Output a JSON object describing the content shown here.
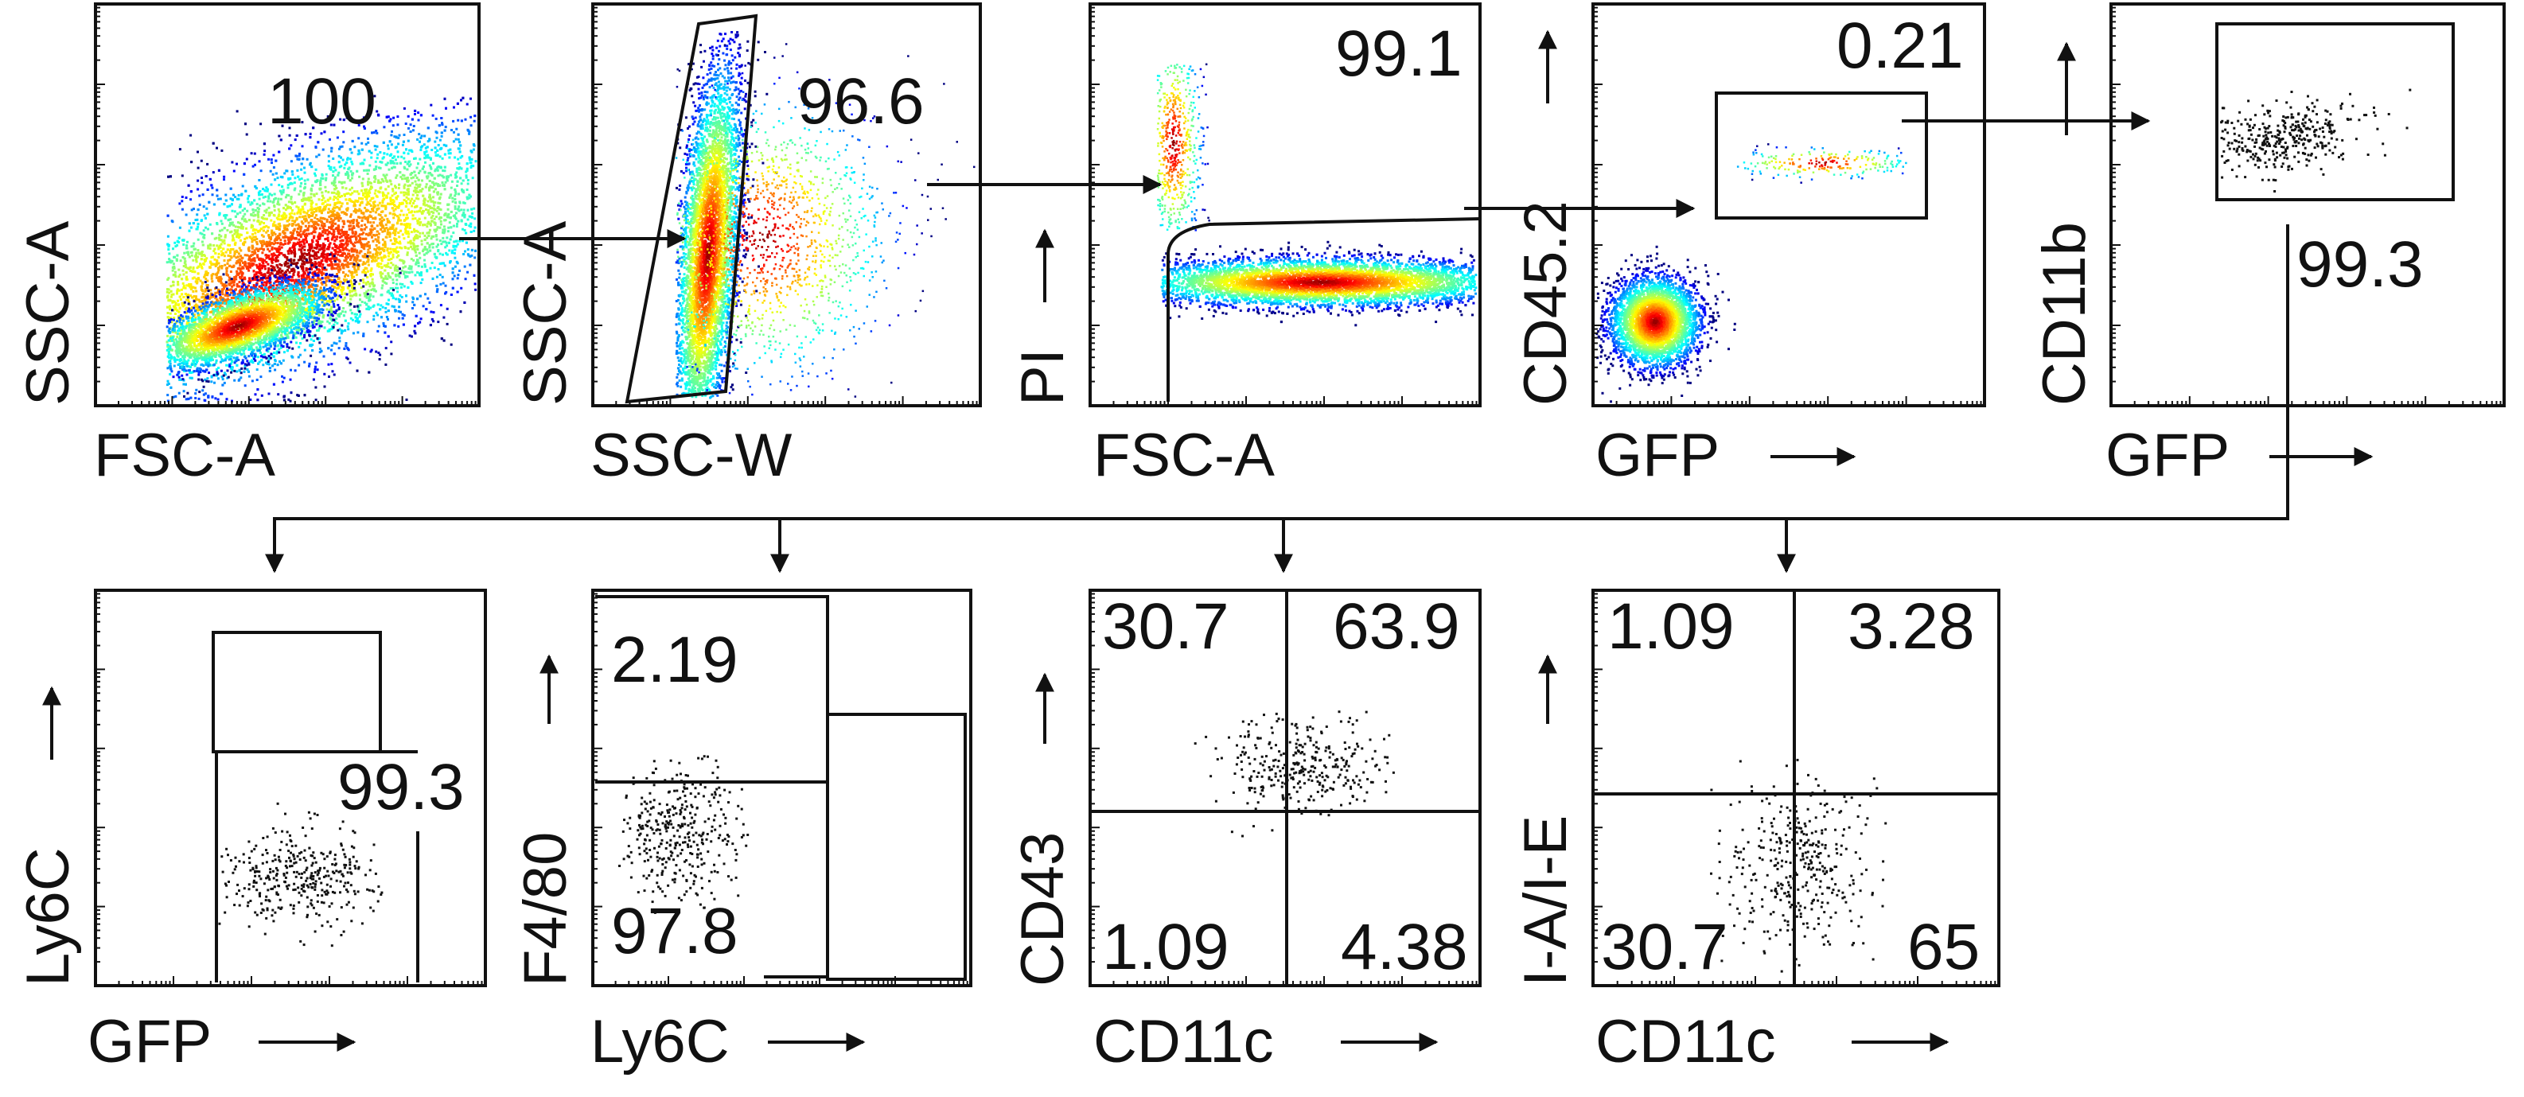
{
  "chart_data": [
    {
      "type": "scatter",
      "name": "panel-1",
      "xlabel": "FSC-A",
      "ylabel": "SSC-A",
      "gates": [
        {
          "label": "100"
        }
      ],
      "colored_density": true
    },
    {
      "type": "scatter",
      "name": "panel-2",
      "xlabel": "SSC-W",
      "ylabel": "SSC-A",
      "gates": [
        {
          "label": "96.6"
        }
      ],
      "colored_density": true
    },
    {
      "type": "scatter",
      "name": "panel-3",
      "xlabel": "FSC-A",
      "ylabel": "PI",
      "gates": [
        {
          "label": "99.1"
        }
      ],
      "colored_density": true
    },
    {
      "type": "scatter",
      "name": "panel-4",
      "xlabel": "GFP",
      "ylabel": "CD45.2",
      "gates": [
        {
          "label": "0.21"
        }
      ],
      "colored_density": true
    },
    {
      "type": "scatter",
      "name": "panel-5",
      "xlabel": "GFP",
      "ylabel": "CD11b",
      "gates": [
        {
          "label": "99.3"
        }
      ],
      "colored_density": false
    },
    {
      "type": "scatter",
      "name": "panel-6",
      "xlabel": "GFP",
      "ylabel": "Ly6C",
      "gates": [
        {
          "label": "99.3"
        }
      ],
      "colored_density": false
    },
    {
      "type": "scatter",
      "name": "panel-7",
      "xlabel": "Ly6C",
      "ylabel": "F4/80",
      "gates": [
        {
          "label": "2.19"
        },
        {
          "label": "97.8"
        }
      ],
      "colored_density": false
    },
    {
      "type": "scatter",
      "name": "panel-8",
      "xlabel": "CD11c",
      "ylabel": "CD43",
      "quadrants": {
        "top_left": "30.7",
        "top_right": "63.9",
        "bottom_left": "1.09",
        "bottom_right": "4.38"
      },
      "colored_density": false
    },
    {
      "type": "scatter",
      "name": "panel-9",
      "xlabel": "CD11c",
      "ylabel": "I-A/I-E",
      "quadrants": {
        "top_left": "1.09",
        "top_right": "3.28",
        "bottom_left": "30.7",
        "bottom_right": "65"
      },
      "colored_density": false
    }
  ]
}
